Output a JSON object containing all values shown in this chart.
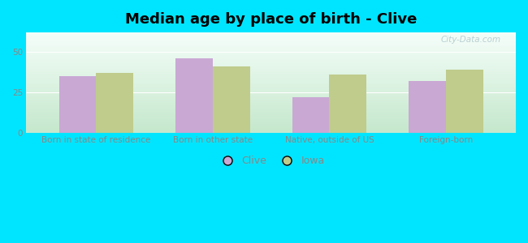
{
  "title": "Median age by place of birth - Clive",
  "categories": [
    "Born in state of residence",
    "Born in other state",
    "Native, outside of US",
    "Foreign-born"
  ],
  "clive_values": [
    35,
    46,
    22,
    32
  ],
  "iowa_values": [
    37,
    41,
    36,
    39
  ],
  "clive_color": "#c9a8d4",
  "iowa_color": "#bfcc8c",
  "background_outer": "#00e5ff",
  "ylim": [
    0,
    62
  ],
  "yticks": [
    0,
    25,
    50
  ],
  "bar_width": 0.32,
  "legend_labels": [
    "Clive",
    "Iowa"
  ],
  "title_fontsize": 13,
  "tick_fontsize": 7.5,
  "legend_fontsize": 9,
  "grad_bottom_left": "#c5e8cc",
  "grad_top_right": "#f0faf8"
}
